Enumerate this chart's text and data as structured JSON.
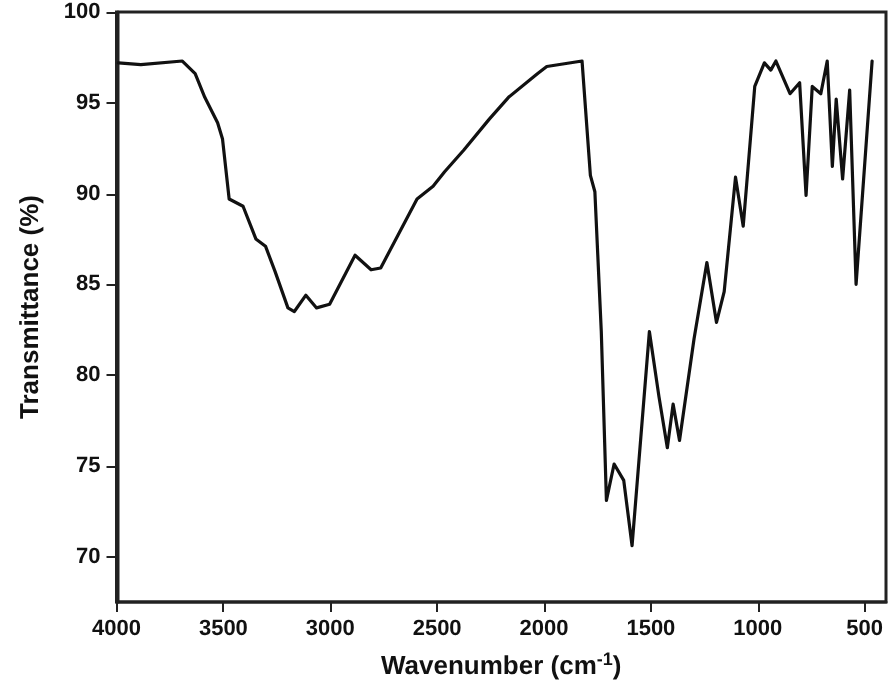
{
  "chart_data": {
    "type": "line",
    "xlabel": "Wavenumber (cm$^{-1}$)",
    "ylabel": "Transmittance (%)",
    "xlim": [
      4000,
      400
    ],
    "xticks": [
      4000,
      3500,
      3000,
      2500,
      2000,
      1500,
      1000,
      500
    ],
    "ylim": [
      67.5,
      100
    ],
    "yticks": [
      70,
      75,
      80,
      85,
      90,
      95,
      100
    ],
    "grid": false,
    "marker": "none",
    "line_style": "solid",
    "series": [
      {
        "color": "#111111",
        "x": [
          3991,
          3886,
          3692,
          3632,
          3587,
          3527,
          3504,
          3473,
          3408,
          3348,
          3303,
          3258,
          3198,
          3168,
          3114,
          3064,
          3003,
          2884,
          2809,
          2764,
          2594,
          2519,
          2465,
          2375,
          2256,
          2166,
          2031,
          1987,
          1822,
          1783,
          1762,
          1732,
          1708,
          1672,
          1627,
          1588,
          1507,
          1462,
          1423,
          1396,
          1366,
          1298,
          1238,
          1193,
          1157,
          1104,
          1068,
          1014,
          969,
          939,
          915,
          849,
          804,
          774,
          745,
          705,
          675,
          651,
          633,
          603,
          570,
          540,
          465
        ],
        "values": [
          97.2,
          97.1,
          97.3,
          96.6,
          95.3,
          93.9,
          93.0,
          89.7,
          89.3,
          87.5,
          87.1,
          85.7,
          83.7,
          83.5,
          84.4,
          83.7,
          83.9,
          86.6,
          85.8,
          85.9,
          89.7,
          90.4,
          91.2,
          92.4,
          94.1,
          95.3,
          96.6,
          97.0,
          97.3,
          91.0,
          90.1,
          82.4,
          73.1,
          75.1,
          74.2,
          70.6,
          82.4,
          78.8,
          76.0,
          78.4,
          76.4,
          82.0,
          86.2,
          82.9,
          84.6,
          90.9,
          88.2,
          95.9,
          97.2,
          96.8,
          97.3,
          95.5,
          96.1,
          89.9,
          95.9,
          95.5,
          97.3,
          91.5,
          95.2,
          90.8,
          95.7,
          85.0,
          97.3
        ]
      }
    ]
  }
}
